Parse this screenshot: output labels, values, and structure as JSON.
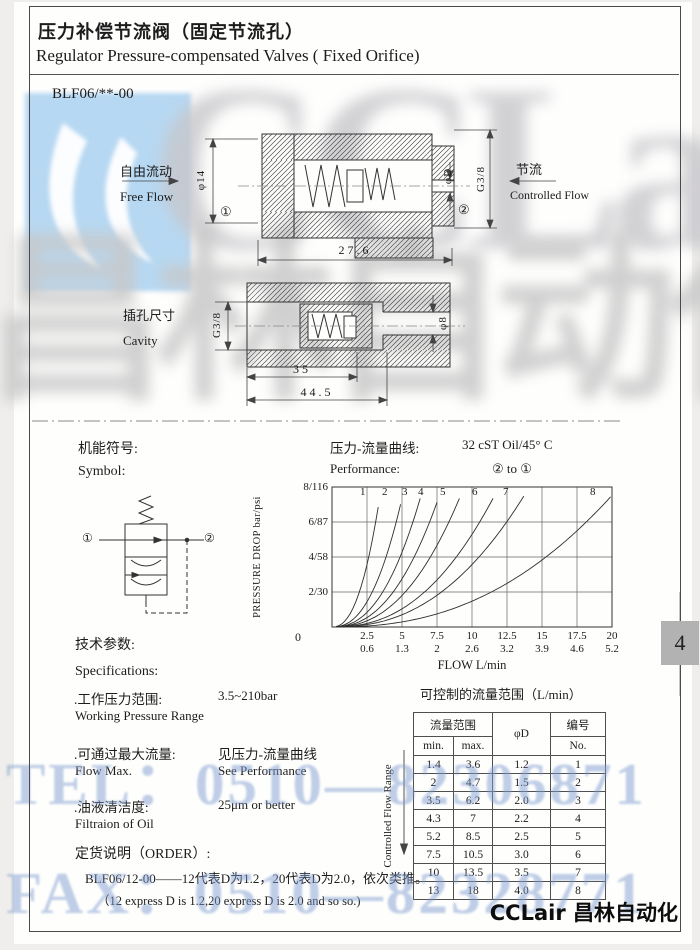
{
  "page": {
    "tab_number": "4"
  },
  "header": {
    "title_zh": "压力补偿节流阀（固定节流孔）",
    "title_en": "Regulator Pressure-compensated Valves ( Fixed Orifice)",
    "model": "BLF06/**-00"
  },
  "watermarks": {
    "brand_latin": "CCLair",
    "brand_zh": "昌林自动化",
    "tel": "TEL：0510—82306871",
    "fax": "FAX：0510—82328771"
  },
  "drawing_side": {
    "free_flow_zh": "自由流动",
    "free_flow_en": "Free Flow",
    "controlled_flow_zh": "节流",
    "controlled_flow_en": "Controlled Flow",
    "dim_diameter": "φ14",
    "dim_length": "27.6",
    "dim_orifice": "φD",
    "dim_port": "G3/8",
    "port_in": "①",
    "port_out": "②"
  },
  "drawing_cavity": {
    "label_zh": "插孔尺寸",
    "label_en": "Cavity",
    "dim_thread": "G3/8",
    "dim_bore": "φ8",
    "dim_depth_inner": "35",
    "dim_depth_total": "44.5"
  },
  "symbol_section": {
    "label_zh": "机能符号:",
    "label_en": "Symbol:",
    "port_in": "①",
    "port_out": "②"
  },
  "performance": {
    "title_zh": "压力-流量曲线:",
    "title_en": "Performance:",
    "oil": "32 cST Oil/45° C",
    "direction": "② to ①"
  },
  "chart_data": {
    "type": "line",
    "title": "压力-流量曲线 Performance",
    "xlabel": "FLOW L/min",
    "ylabel": "PRESSURE DROP bar/psi",
    "origin_label": "0",
    "xlim": [
      0,
      20
    ],
    "ylim": [
      0,
      8
    ],
    "grid": true,
    "x_grid_step_lmin": 2.5,
    "y_grid_step_bar": 2,
    "y_ticks": [
      "8/116",
      "6/87",
      "4/58",
      "2/30"
    ],
    "x_ticks": [
      {
        "lmin": "2.5",
        "alt": "0.6"
      },
      {
        "lmin": "5",
        "alt": "1.3"
      },
      {
        "lmin": "7.5",
        "alt": "2"
      },
      {
        "lmin": "10",
        "alt": "2.6"
      },
      {
        "lmin": "12.5",
        "alt": "3.2"
      },
      {
        "lmin": "15",
        "alt": "3.9"
      },
      {
        "lmin": "17.5",
        "alt": "4.6"
      },
      {
        "lmin": "20",
        "alt": "5.2"
      }
    ],
    "top_pressure_bar": 7.35,
    "curve_exponent": 2.35,
    "curves": [
      {
        "label": "1",
        "flow_at_top": 3.4,
        "label_flow": 2.3
      },
      {
        "label": "2",
        "flow_at_top": 5.0,
        "label_flow": 3.85
      },
      {
        "label": "3",
        "flow_at_top": 6.3,
        "label_flow": 5.3
      },
      {
        "label": "4",
        "flow_at_top": 7.6,
        "label_flow": 6.4
      },
      {
        "label": "5",
        "flow_at_top": 9.1,
        "label_flow": 8.0
      },
      {
        "label": "6",
        "flow_at_top": 11.5,
        "label_flow": 10.3
      },
      {
        "label": "7",
        "flow_at_top": 13.6,
        "label_flow": 12.5
      },
      {
        "label": "8",
        "flow_at_top": 19.8,
        "label_flow": 18.7
      }
    ]
  },
  "specs": {
    "heading_zh": "技术参数:",
    "heading_en": "Specifications:",
    "rows": [
      {
        "zh": ".工作压力范围:",
        "en": "Working Pressure Range",
        "value": "3.5~210bar",
        "value_en": ""
      },
      {
        "zh": ".可通过最大流量:",
        "en": "Flow Max.",
        "value": "见压力-流量曲线",
        "value_en": "See Performance"
      },
      {
        "zh": ".油液清洁度:",
        "en": "Filtraion of Oil",
        "value": "25μm or better",
        "value_en": ""
      }
    ],
    "order_heading": "定货说明（ORDER）:",
    "order_line1": "BLF06/12-00——12代表D为1.2，20代表D为2.0，依次类推。",
    "order_line2": "（12 express D is 1.2,20 express D is 2.0 and so so.)"
  },
  "flow_table": {
    "title": "可控制的流量范围（L/min）",
    "side_label": "Controlled Flow Range",
    "header": {
      "range": "流量范围",
      "min": "min.",
      "max": "max.",
      "d": "φD",
      "no_zh": "编号",
      "no_en": "No."
    },
    "rows": [
      [
        "1.4",
        "3.6",
        "1.2",
        "1"
      ],
      [
        "2",
        "4.7",
        "1.5",
        "2"
      ],
      [
        "3.5",
        "6.2",
        "2.0",
        "3"
      ],
      [
        "4.3",
        "7",
        "2.2",
        "4"
      ],
      [
        "5.2",
        "8.5",
        "2.5",
        "5"
      ],
      [
        "7.5",
        "10.5",
        "3.0",
        "6"
      ],
      [
        "10",
        "13.5",
        "3.5",
        "7"
      ],
      [
        "13",
        "18",
        "4.0",
        "8"
      ]
    ]
  },
  "footer": {
    "brand": "CCLair 昌林自动化"
  }
}
